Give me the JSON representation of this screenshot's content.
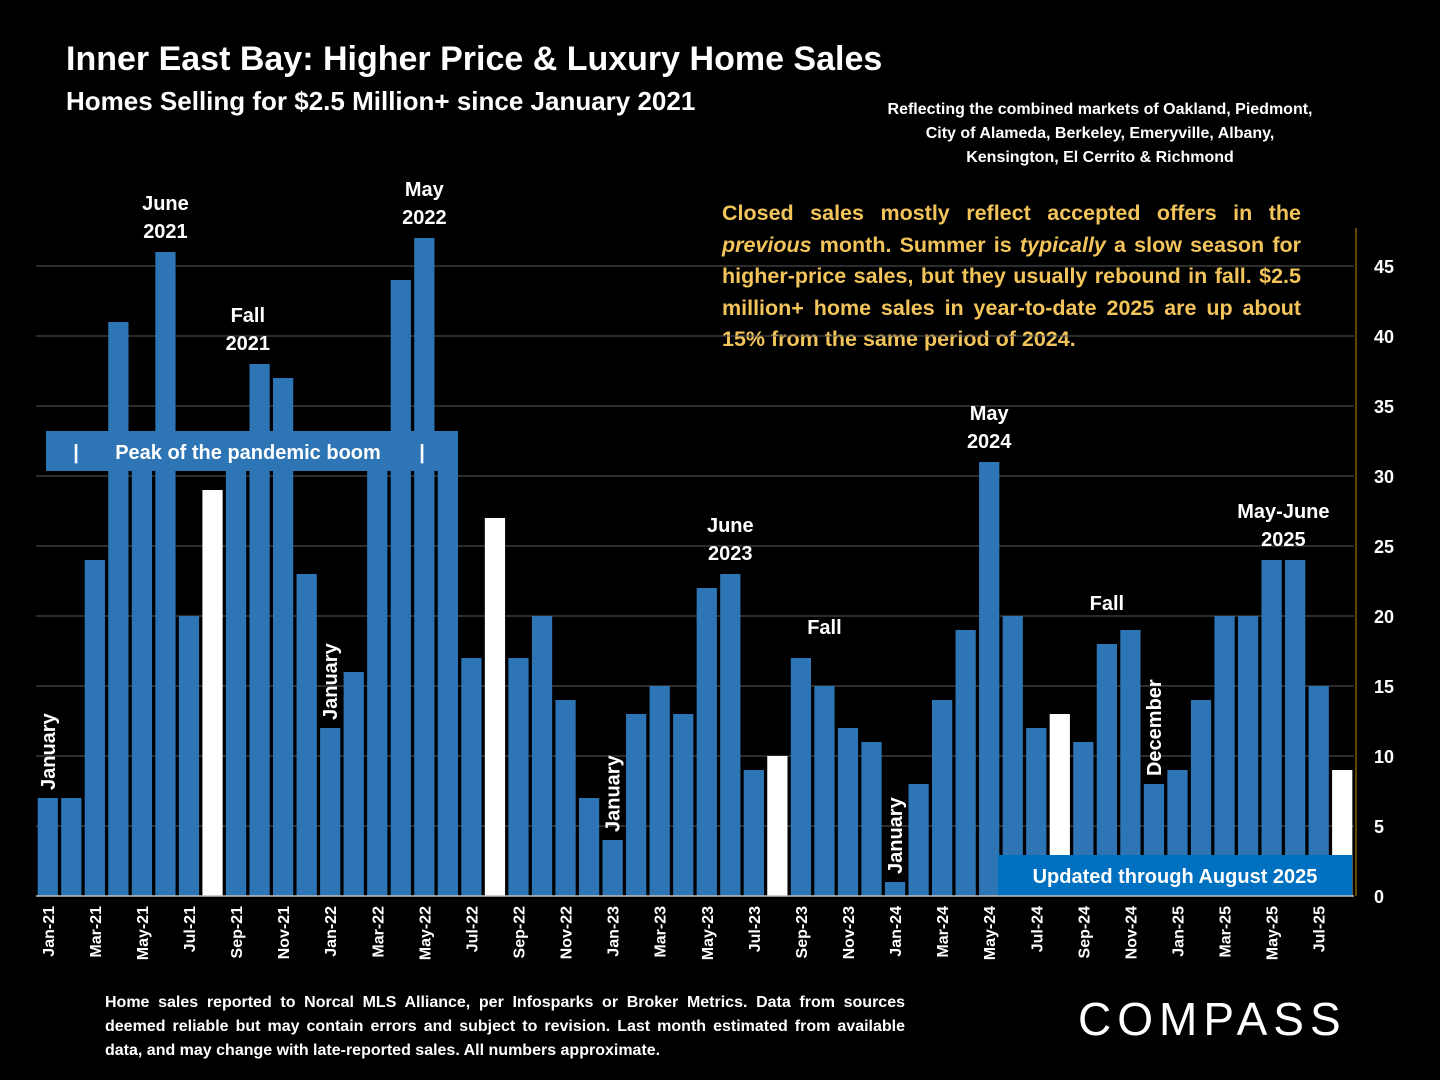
{
  "header": {
    "title": "Inner East Bay: Higher Price & Luxury Home Sales",
    "subtitle": "Homes Selling for $2.5 Million+ since January 2021",
    "markets_note": "Reflecting the combined markets of Oakland, Piedmont, City of Alameda, Berkeley, Emeryville, Albany, Kensington, El Cerrito & Richmond"
  },
  "commentary": {
    "p1": "Closed sales mostly reflect accepted offers in the ",
    "em1": "previous",
    "p2": " month. Summer is ",
    "em2": "typically",
    "p3": " a slow season for higher-price sales, but they usually rebound in fall. $2.5 million+ home sales in year-to-date 2025 are up about 15% from the same period of 2024."
  },
  "footnote": "Home sales reported to Norcal MLS Alliance, per Infosparks or Broker Metrics. Data from sources deemed reliable but may contain errors and subject to revision.  Last month estimated from available data, and may change with late-reported sales. All numbers approximate.",
  "brand": {
    "logo_text": "COMPASS"
  },
  "colors": {
    "bar": "#2e75b6",
    "highlight_bar": "#ffffff",
    "commentary": "#f2c45a",
    "background": "#000000"
  },
  "chart_data": {
    "type": "bar",
    "x": [
      "Jan-21",
      "Feb-21",
      "Mar-21",
      "Apr-21",
      "May-21",
      "Jun-21",
      "Jul-21",
      "Aug-21",
      "Sep-21",
      "Oct-21",
      "Nov-21",
      "Dec-21",
      "Jan-22",
      "Feb-22",
      "Mar-22",
      "Apr-22",
      "May-22",
      "Jun-22",
      "Jul-22",
      "Aug-22",
      "Sep-22",
      "Oct-22",
      "Nov-22",
      "Dec-22",
      "Jan-23",
      "Feb-23",
      "Mar-23",
      "Apr-23",
      "May-23",
      "Jun-23",
      "Jul-23",
      "Aug-23",
      "Sep-23",
      "Oct-23",
      "Nov-23",
      "Dec-23",
      "Jan-24",
      "Feb-24",
      "Mar-24",
      "Apr-24",
      "May-24",
      "Jun-24",
      "Jul-24",
      "Aug-24",
      "Sep-24",
      "Oct-24",
      "Nov-24",
      "Dec-24",
      "Jan-25",
      "Feb-25",
      "Mar-25",
      "Apr-25",
      "May-25",
      "Jun-25",
      "Jul-25",
      "Aug-25"
    ],
    "values": [
      7,
      7,
      24,
      41,
      31,
      46,
      20,
      29,
      31,
      38,
      37,
      23,
      12,
      16,
      31,
      44,
      47,
      33,
      17,
      27,
      17,
      20,
      14,
      7,
      4,
      13,
      15,
      13,
      22,
      23,
      9,
      10,
      17,
      15,
      12,
      11,
      1,
      8,
      14,
      19,
      31,
      20,
      12,
      13,
      11,
      18,
      19,
      8,
      9,
      14,
      20,
      20,
      24,
      24,
      15,
      9
    ],
    "highlight_months": [
      "Aug-21",
      "Aug-22",
      "Aug-23",
      "Aug-24",
      "Aug-25"
    ],
    "x_tick_labels": [
      "Jan-21",
      "Mar-21",
      "May-21",
      "Jul-21",
      "Sep-21",
      "Nov-21",
      "Jan-22",
      "Mar-22",
      "May-22",
      "Jul-22",
      "Sep-22",
      "Nov-22",
      "Jan-23",
      "Mar-23",
      "May-23",
      "Jul-23",
      "Sep-23",
      "Nov-23",
      "Jan-24",
      "Mar-24",
      "May-24",
      "Jul-24",
      "Sep-24",
      "Nov-24",
      "Jan-25",
      "Mar-25",
      "May-25",
      "Jul-25"
    ],
    "y_ticks": [
      "0",
      "5",
      "10",
      "15",
      "20",
      "25",
      "30",
      "35",
      "40",
      "45"
    ],
    "ylim": [
      0,
      48
    ],
    "y_axis_side": "right",
    "grid": true,
    "annotations": [
      {
        "text": "January",
        "month": "Jan-21",
        "orient": "vertical"
      },
      {
        "text": "June\n2021",
        "month": "Jun-21",
        "orient": "horizontal"
      },
      {
        "text": "Fall\n2021",
        "month": "Oct-21",
        "orient": "horizontal"
      },
      {
        "text": "January",
        "month": "Jan-22",
        "orient": "vertical"
      },
      {
        "text": "May\n2022",
        "month": "May-22",
        "orient": "horizontal"
      },
      {
        "text": "January",
        "month": "Jan-23",
        "orient": "vertical"
      },
      {
        "text": "June\n2023",
        "month": "Jun-23",
        "orient": "horizontal"
      },
      {
        "text": "Fall",
        "month": "Oct-23",
        "orient": "horizontal"
      },
      {
        "text": "January",
        "month": "Jan-24",
        "orient": "vertical"
      },
      {
        "text": "May\n2024",
        "month": "May-24",
        "orient": "horizontal"
      },
      {
        "text": "Fall",
        "month": "Oct-24",
        "orient": "horizontal"
      },
      {
        "text": "December",
        "month": "Dec-24",
        "orient": "vertical"
      },
      {
        "text": "May-June\n2025",
        "month": "Jun-25",
        "orient": "horizontal"
      }
    ],
    "callouts": {
      "peak_label": "Peak of the pandemic boom",
      "peak_bar_left": "|",
      "peak_bar_right": "|",
      "updated_label": "Updated through August 2025"
    }
  }
}
